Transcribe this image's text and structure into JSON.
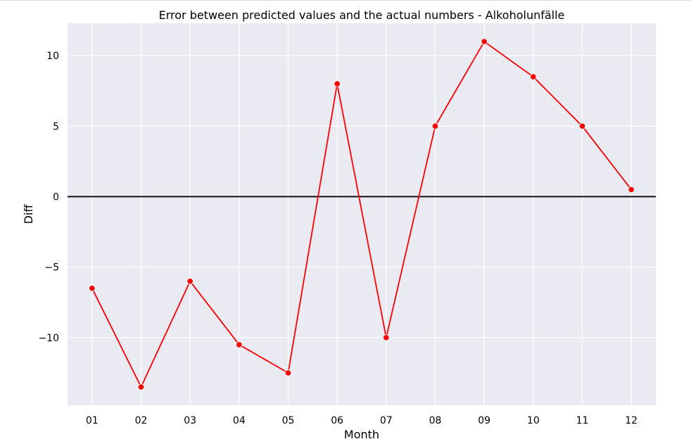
{
  "chart_data": {
    "type": "line",
    "title": "Error between predicted values and the actual numbers - Alkoholunfälle",
    "xlabel": "Month",
    "ylabel": "Diff",
    "categories": [
      "01",
      "02",
      "03",
      "04",
      "05",
      "06",
      "07",
      "08",
      "09",
      "10",
      "11",
      "12"
    ],
    "series": [
      {
        "values": [
          -6.5,
          -13.5,
          -6.0,
          -10.5,
          -12.5,
          8.0,
          -10.0,
          5.0,
          11.0,
          8.5,
          5.0,
          0.5
        ],
        "color": "#ff0000"
      }
    ],
    "reference_line": {
      "y": 0,
      "color": "#000000"
    },
    "ylim": [
      -14.8,
      12.3
    ],
    "yticks": [
      -10,
      -5,
      0,
      5,
      10
    ],
    "ytick_labels": [
      "−10",
      "−5",
      "0",
      "5",
      "10"
    ],
    "grid": true,
    "plot_background": "#eaeaf2",
    "grid_color": "#ffffff"
  }
}
